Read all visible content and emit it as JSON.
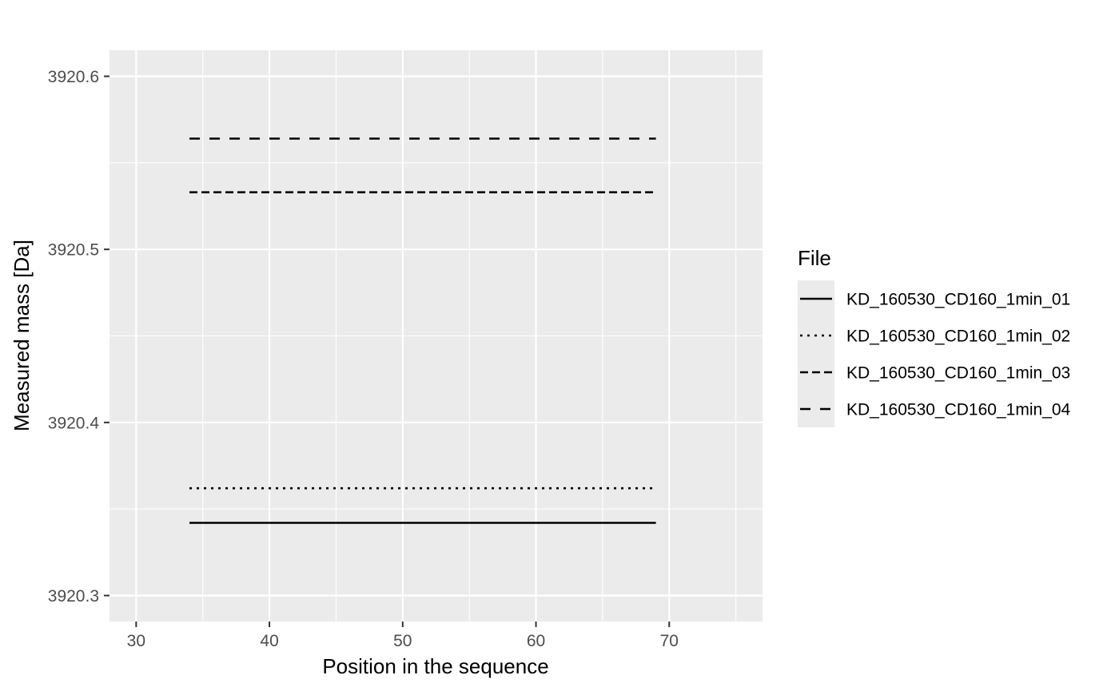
{
  "chart_data": {
    "type": "line",
    "xlabel": "Position in the sequence",
    "ylabel": "Measured mass [Da]",
    "xlim": [
      28,
      77
    ],
    "ylim": [
      3920.285,
      3920.615
    ],
    "x_ticks": [
      30,
      40,
      50,
      60,
      70
    ],
    "x_tick_labels": [
      "30",
      "40",
      "50",
      "60",
      "70"
    ],
    "x_minor_ticks": [
      35,
      45,
      55,
      65,
      75
    ],
    "y_ticks": [
      3920.3,
      3920.4,
      3920.5,
      3920.6
    ],
    "y_tick_labels": [
      "3920.3",
      "3920.4",
      "3920.5",
      "3920.6"
    ],
    "y_minor_ticks": [
      3920.35,
      3920.45,
      3920.55
    ],
    "grid": true,
    "background": "#ebebeb",
    "grid_color": "#ffffff",
    "line_color": "#000000",
    "legend": {
      "title": "File",
      "position": "right"
    },
    "series": [
      {
        "name": "KD_160530_CD160_1min_01",
        "linetype": "solid",
        "x": [
          34,
          69
        ],
        "y": [
          3920.342,
          3920.342
        ]
      },
      {
        "name": "KD_160530_CD160_1min_02",
        "linetype": "dotted",
        "x": [
          34,
          69
        ],
        "y": [
          3920.362,
          3920.362
        ]
      },
      {
        "name": "KD_160530_CD160_1min_03",
        "linetype": "dashed",
        "x": [
          34,
          69
        ],
        "y": [
          3920.533,
          3920.533
        ]
      },
      {
        "name": "KD_160530_CD160_1min_04",
        "linetype": "longdash",
        "x": [
          34,
          69
        ],
        "y": [
          3920.564,
          3920.564
        ]
      }
    ]
  }
}
